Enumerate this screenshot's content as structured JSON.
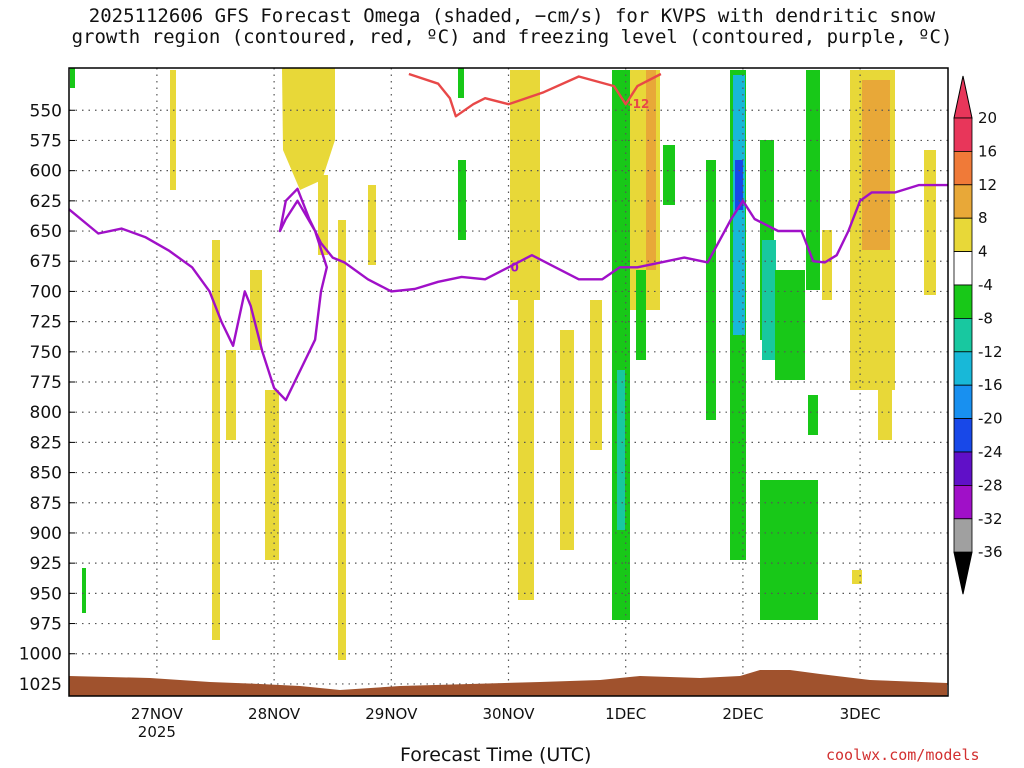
{
  "title_line1": "2025112606 GFS Forecast Omega (shaded, −cm/s) for KVPS with dendritic snow",
  "title_line2": "growth region (contoured, red, ºC) and freezing level (contoured, purple, ºC)",
  "xaxis_title": "Forecast Time (UTC)",
  "credit": "coolwx.com/models",
  "chart_data": {
    "type": "heatmap",
    "title": "2025112606 GFS Forecast Omega (shaded, −cm/s) for KVPS with dendritic snow growth region (contoured, red, ºC) and freezing level (contoured, purple, ºC)",
    "xlabel": "Forecast Time (UTC)",
    "ylabel": "",
    "y_ticks": [
      550,
      575,
      600,
      625,
      650,
      675,
      700,
      725,
      750,
      775,
      800,
      825,
      850,
      875,
      900,
      925,
      950,
      975,
      1000,
      1025
    ],
    "y_range_hpa": [
      1035,
      515
    ],
    "x_ticks": [
      "27NOV",
      "28NOV",
      "29NOV",
      "30NOV",
      "1DEC",
      "2DEC",
      "3DEC"
    ],
    "x_tick_sub": [
      "2025",
      "",
      "",
      "",
      "",
      "",
      ""
    ],
    "x_range_days": [
      -0.75,
      6.75
    ],
    "grid": true,
    "colorbar": {
      "labels": [
        "20",
        "16",
        "12",
        "8",
        "4",
        "-4",
        "-8",
        "-12",
        "-16",
        "-20",
        "-24",
        "-28",
        "-32",
        "-36"
      ],
      "colors": [
        "#e8365a",
        "#f07a38",
        "#e8a838",
        "#e8d838",
        "#ffffff",
        "#18c818",
        "#18c8a0",
        "#18b8d8",
        "#1890f0",
        "#1848e8",
        "#6010c8",
        "#a010c8",
        "#a0a0a0",
        "#000000"
      ]
    },
    "series": [
      {
        "name": "-12",
        "color": "#e84848",
        "x": [
          2.15,
          2.4,
          2.5,
          2.55,
          2.7,
          2.8,
          3.0,
          3.3,
          3.6,
          3.9,
          4.0,
          4.1,
          4.3
        ],
        "y": [
          520,
          528,
          540,
          555,
          545,
          540,
          545,
          535,
          522,
          530,
          545,
          530,
          520
        ]
      },
      {
        "name": "0",
        "color": "#a010c8",
        "x": [
          -0.75,
          -0.5,
          -0.3,
          -0.1,
          0.1,
          0.3,
          0.45,
          0.55,
          0.65,
          0.75,
          0.8,
          0.9,
          1.0,
          1.1,
          1.25,
          1.35,
          1.4,
          1.45,
          1.35,
          1.2,
          1.1,
          1.05,
          1.1,
          1.2,
          1.3,
          1.4,
          1.5,
          1.6,
          1.8,
          2.0,
          2.2,
          2.4,
          2.6,
          2.8,
          3.0,
          3.2,
          3.4,
          3.6,
          3.8,
          3.95,
          4.1,
          4.3,
          4.5,
          4.7,
          4.9,
          5.0,
          5.1,
          5.3,
          5.5,
          5.6,
          5.7,
          5.8,
          5.9,
          6.0,
          6.1,
          6.3,
          6.5,
          6.75
        ],
        "y": [
          632,
          652,
          648,
          655,
          666,
          680,
          700,
          725,
          745,
          700,
          712,
          750,
          780,
          790,
          760,
          740,
          700,
          680,
          650,
          625,
          640,
          650,
          625,
          615,
          640,
          660,
          672,
          676,
          690,
          700,
          698,
          692,
          688,
          690,
          680,
          670,
          680,
          690,
          690,
          680,
          680,
          676,
          672,
          676,
          640,
          625,
          640,
          650,
          650,
          675,
          676,
          670,
          650,
          625,
          618,
          618,
          612,
          612
        ]
      }
    ]
  }
}
